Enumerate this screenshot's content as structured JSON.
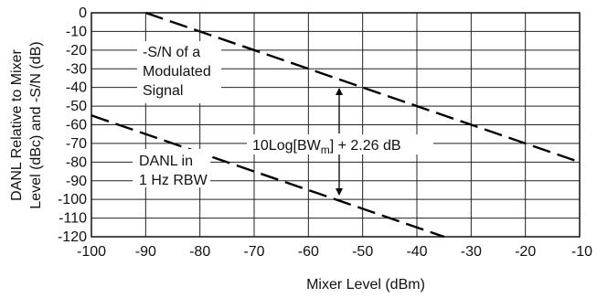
{
  "chart_data": {
    "type": "line",
    "xlabel": "Mixer Level (dBm)",
    "ylabel_lines": [
      "DANL Relative to Mixer",
      "Level (dBc) and -S/N (dB)"
    ],
    "xlim": [
      -100,
      -10
    ],
    "ylim": [
      -120,
      0
    ],
    "x_ticks": [
      -100,
      -90,
      -80,
      -70,
      -60,
      -50,
      -40,
      -30,
      -20,
      -10
    ],
    "y_ticks": [
      0,
      -10,
      -20,
      -30,
      -40,
      -50,
      -60,
      -70,
      -80,
      -90,
      -100,
      -110,
      -120
    ],
    "grid": true,
    "series": [
      {
        "x": [
          -90,
          -10
        ],
        "y": [
          0,
          -80
        ]
      },
      {
        "x": [
          -100,
          -35
        ],
        "y": [
          -55,
          -120
        ]
      }
    ],
    "annotations": {
      "signal_lines": [
        "-S/N of a",
        "Modulated",
        "Signal"
      ],
      "danl_lines": [
        "DANL in",
        "1 Hz RBW"
      ],
      "offset_prefix": "10Log[BW",
      "offset_sub": "m",
      "offset_suffix": "] + 2.26 dB"
    }
  }
}
